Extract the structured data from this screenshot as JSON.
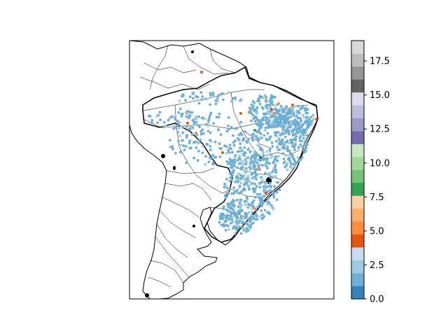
{
  "colorbar": {
    "ticks": [
      "0.0",
      "2.5",
      "5.0",
      "7.5",
      "10.0",
      "12.5",
      "15.0",
      "17.5"
    ],
    "tick_values": [
      0,
      2.5,
      5,
      7.5,
      10,
      12.5,
      15,
      17.5
    ],
    "range": [
      0,
      19
    ],
    "colors": [
      "#3182bd",
      "#6baed6",
      "#9ecae1",
      "#c6dbef",
      "#e6550d",
      "#fd8d3c",
      "#fdae6b",
      "#fdd0a2",
      "#31a354",
      "#74c476",
      "#a1d99b",
      "#c7e9c0",
      "#756bb1",
      "#9e9ac8",
      "#bcbddc",
      "#dadaeb",
      "#636363",
      "#969696",
      "#bdbdbd",
      "#d9d9d9"
    ]
  },
  "map": {
    "region": "South America",
    "background": "#ffffff",
    "point_categories": [
      {
        "color": "#6baed6",
        "share": "dominant"
      },
      {
        "color": "#9ecae1",
        "share": "some"
      },
      {
        "color": "#e6550d",
        "share": "few"
      },
      {
        "color": "#fd8d3c",
        "share": "few"
      },
      {
        "color": "#31a354",
        "share": "rare"
      }
    ]
  }
}
